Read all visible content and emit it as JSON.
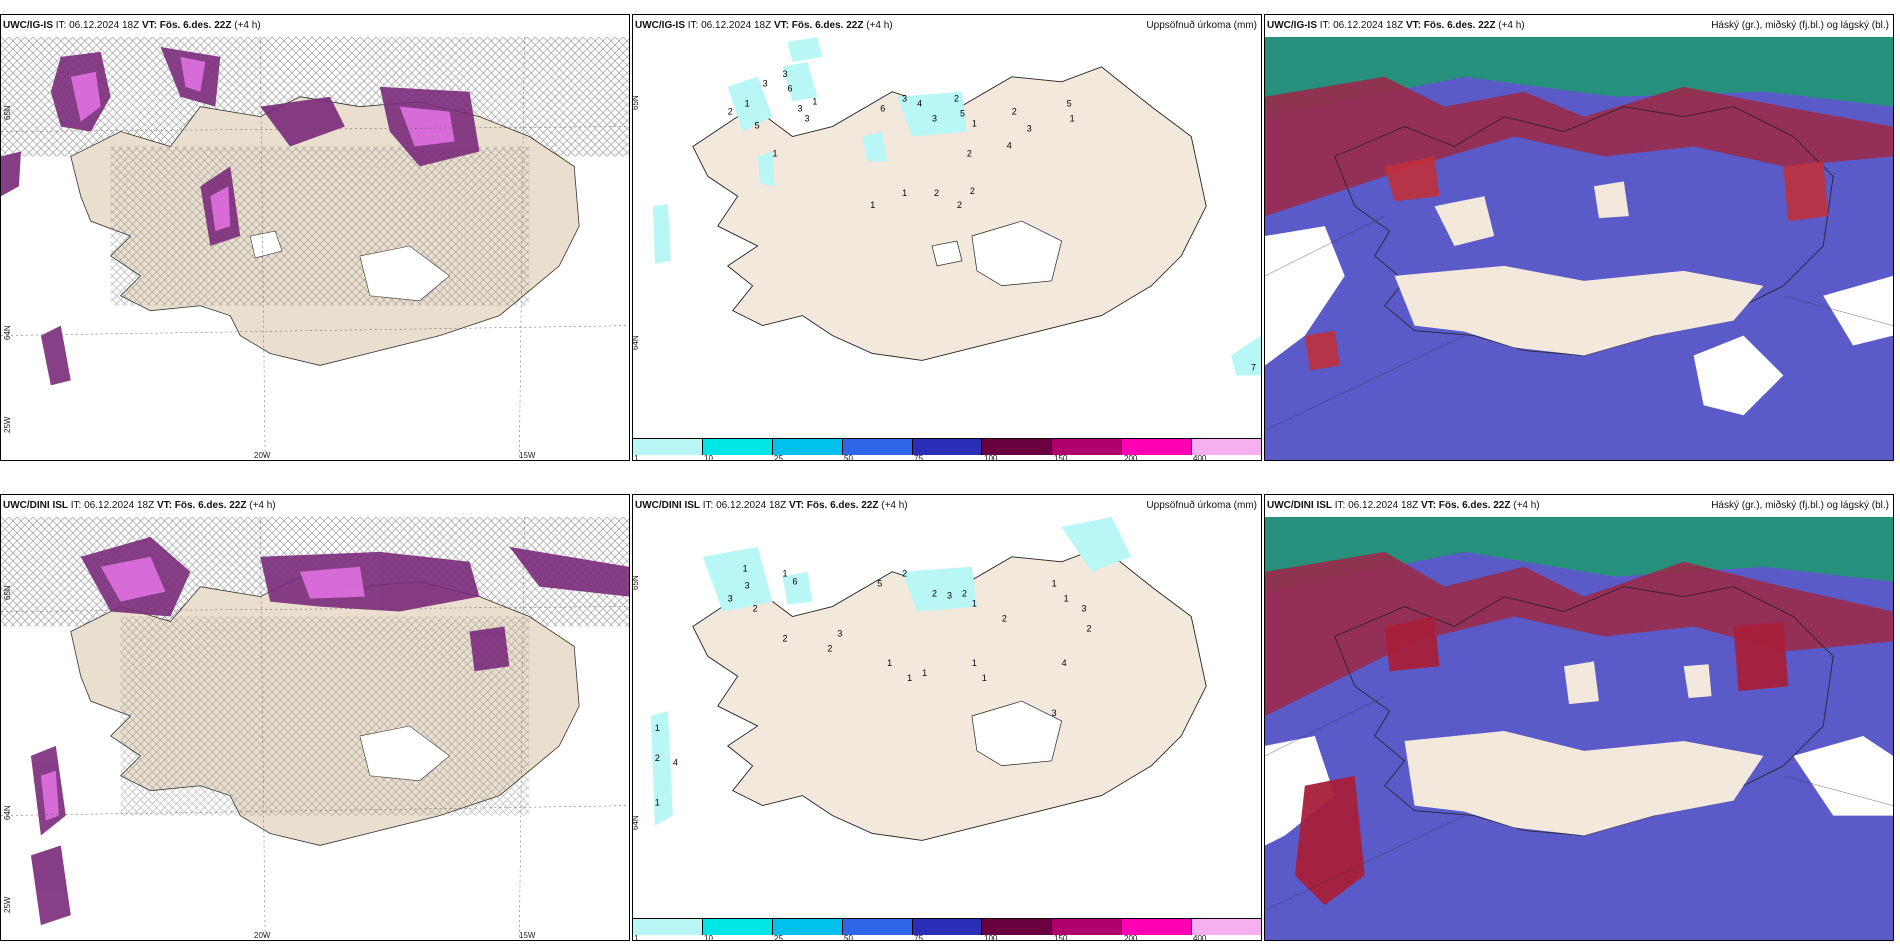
{
  "panels": [
    {
      "id": "top-left",
      "model": "UWC/IG-IS",
      "it_label": "IT:",
      "it_value": "06.12.2024 18Z",
      "vt_label": "VT:",
      "vt_value": "Fös. 6.des. 22Z",
      "lead": "(+4 h)",
      "right_title": "",
      "lon_labels": [
        "20W",
        "15W"
      ],
      "lat_labels": [
        "65N",
        "64N",
        "25W"
      ]
    },
    {
      "id": "top-middle",
      "model": "UWC/IG-IS",
      "it_label": "IT:",
      "it_value": "06.12.2024 18Z",
      "vt_label": "VT:",
      "vt_value": "Fös. 6.des. 22Z",
      "lead": "(+4 h)",
      "right_title": "Uppsöfnuð úrkoma (mm)",
      "lat_labels": [
        "65N",
        "64N"
      ]
    },
    {
      "id": "top-right",
      "model": "UWC/IG-IS",
      "it_label": "IT:",
      "it_value": "06.12.2024 18Z",
      "vt_label": "VT:",
      "vt_value": "Fös. 6.des. 22Z",
      "lead": "(+4 h)",
      "right_title": "Háský (gr.), miðský (fj.bl.) og lágský (bl.)"
    },
    {
      "id": "bottom-left",
      "model": "UWC/DINI ISL",
      "it_label": "IT:",
      "it_value": "06.12.2024 18Z",
      "vt_label": "VT:",
      "vt_value": "Fös. 6.des. 22Z",
      "lead": "(+4 h)",
      "right_title": "",
      "lon_labels": [
        "20W",
        "15W"
      ],
      "lat_labels": [
        "65N",
        "64N",
        "25W"
      ]
    },
    {
      "id": "bottom-middle",
      "model": "UWC/DINI ISL",
      "it_label": "IT:",
      "it_value": "06.12.2024 18Z",
      "vt_label": "VT:",
      "vt_value": "Fös. 6.des. 22Z",
      "lead": "(+4 h)",
      "right_title": "Uppsöfnuð úrkoma (mm)",
      "lat_labels": [
        "65N",
        "64N"
      ]
    },
    {
      "id": "bottom-right",
      "model": "UWC/DINI ISL",
      "it_label": "IT:",
      "it_value": "06.12.2024 18Z",
      "vt_label": "VT:",
      "vt_value": "Fös. 6.des. 22Z",
      "lead": "(+4 h)",
      "right_title": "Háský (gr.), miðský (fj.bl.) og lágský (bl.)"
    }
  ],
  "colorbar": {
    "labels": [
      "1",
      "10",
      "25",
      "50",
      "75",
      "100",
      "150",
      "200",
      "400"
    ],
    "colors": [
      "#b9f6f6",
      "#00e6e6",
      "#00c0ee",
      "#2f66e8",
      "#2a2fb8",
      "#6a003e",
      "#b0006e",
      "#ff00b4",
      "#f5b0f0"
    ]
  },
  "colors": {
    "land": "#f3e8dc",
    "land_left": "#eadfcf",
    "cloud_low": "#5a5ac8",
    "cloud_mid": "#9a2a4a",
    "cloud_high": "#1e9a70",
    "precip_purple": "#7a2a7a",
    "precip_pink": "#e070e0"
  },
  "precip_labels_top": [
    "2",
    "1",
    "5",
    "3",
    "3",
    "6",
    "3",
    "3",
    "1",
    "1",
    "6",
    "3",
    "4",
    "3",
    "2",
    "5",
    "1",
    "2",
    "3",
    "5",
    "1",
    "4",
    "2",
    "2",
    "2",
    "2",
    "1",
    "1",
    "7"
  ],
  "precip_labels_bottom": [
    "3",
    "1",
    "3",
    "2",
    "1",
    "6",
    "2",
    "2",
    "3",
    "5",
    "2",
    "2",
    "3",
    "2",
    "1",
    "1",
    "1",
    "1",
    "1",
    "2",
    "3",
    "3",
    "2",
    "4",
    "1",
    "1",
    "1",
    "1",
    "2",
    "4",
    "1"
  ]
}
